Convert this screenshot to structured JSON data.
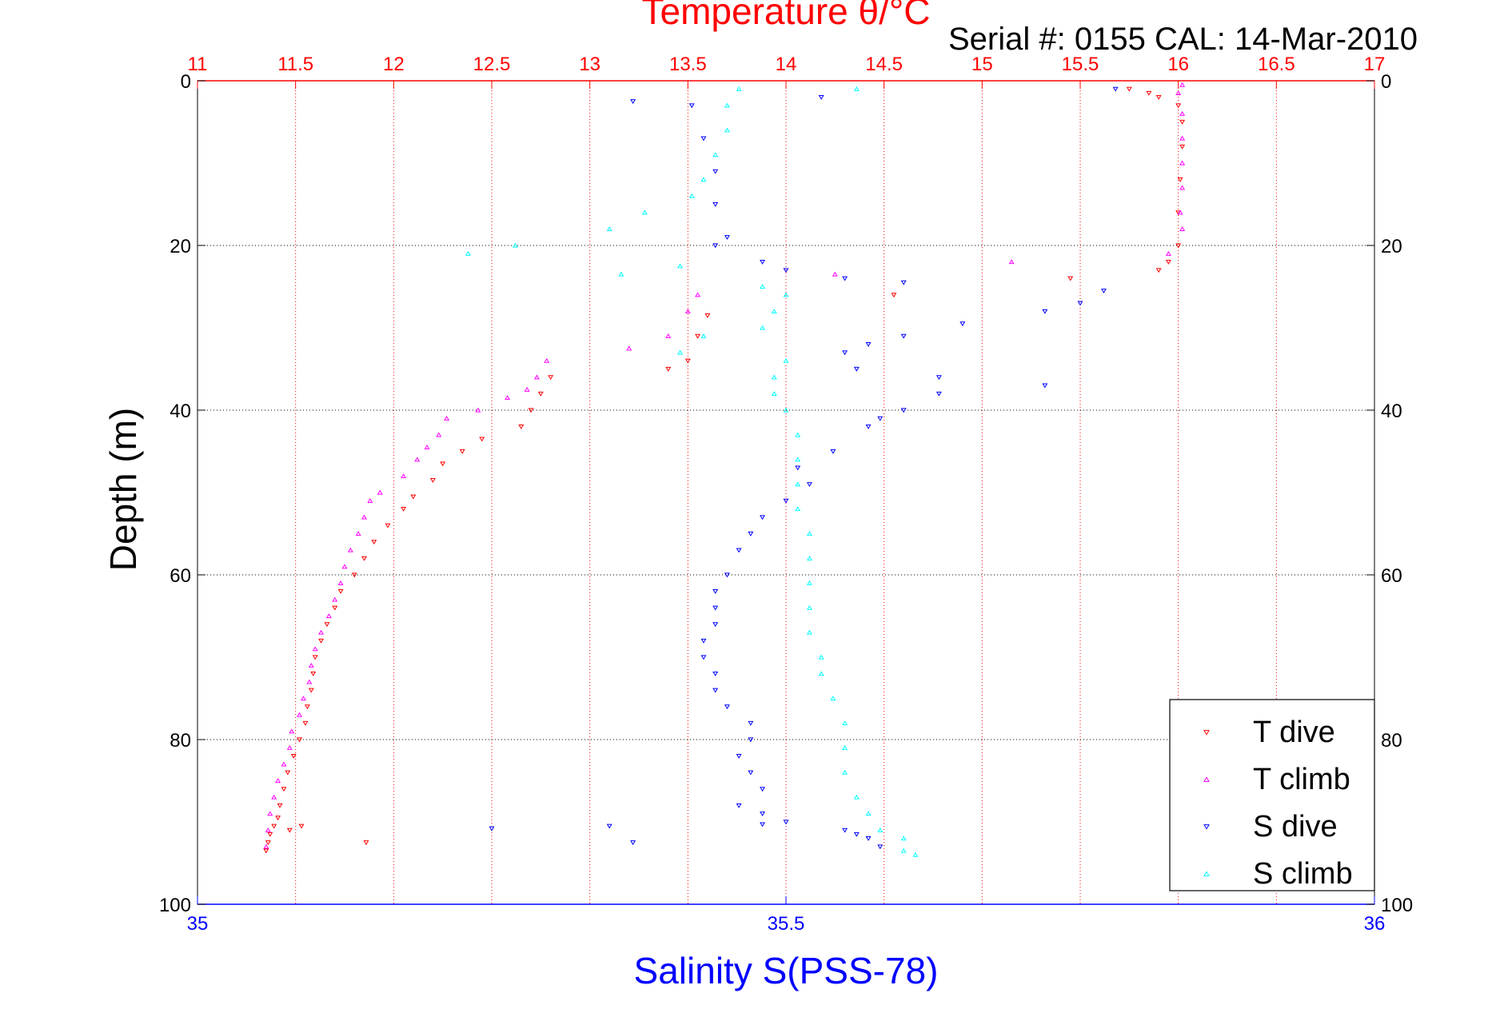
{
  "chart_data": {
    "type": "scatter",
    "title": "Temperature θ/°C",
    "subtitle": "Serial #: 0155  CAL: 14-Mar-2010",
    "xlabel": "Salinity S(PSS-78)",
    "ylabel": "Depth (m)",
    "temperature_axis": {
      "lim": [
        11,
        17
      ],
      "ticks": [
        "11",
        "11.5",
        "12",
        "12.5",
        "13",
        "13.5",
        "14",
        "14.5",
        "15",
        "15.5",
        "16",
        "16.5",
        "17"
      ]
    },
    "salinity_axis": {
      "lim": [
        35,
        36
      ],
      "ticks": [
        "35",
        "35.5",
        "36"
      ]
    },
    "depth_axis": {
      "lim": [
        0,
        100
      ],
      "reversed": true,
      "ticks": [
        "0",
        "20",
        "40",
        "60",
        "80",
        "100"
      ]
    },
    "grid": true,
    "legend_position": "bottom-right",
    "colors": {
      "temperature_axis": "#ff0000",
      "salinity_axis": "#0000ff",
      "depth_axis": "#000000"
    },
    "series": [
      {
        "name": "T dive",
        "color": "#ff0000",
        "marker": "triangle-down",
        "axis": "temperature",
        "points": [
          [
            15.75,
            1
          ],
          [
            15.85,
            1.5
          ],
          [
            15.9,
            2
          ],
          [
            16.0,
            3
          ],
          [
            16.02,
            5
          ],
          [
            16.02,
            8
          ],
          [
            16.01,
            12
          ],
          [
            16.0,
            16
          ],
          [
            16.0,
            20
          ],
          [
            15.95,
            22
          ],
          [
            15.9,
            23
          ],
          [
            15.45,
            24
          ],
          [
            14.55,
            26
          ],
          [
            13.6,
            28.5
          ],
          [
            13.55,
            31
          ],
          [
            13.5,
            34
          ],
          [
            13.4,
            35
          ],
          [
            12.8,
            36
          ],
          [
            12.75,
            38
          ],
          [
            12.7,
            40
          ],
          [
            12.65,
            42
          ],
          [
            12.45,
            43.5
          ],
          [
            12.35,
            45
          ],
          [
            12.25,
            46.5
          ],
          [
            12.2,
            48.5
          ],
          [
            12.1,
            50.5
          ],
          [
            12.05,
            52
          ],
          [
            11.97,
            54
          ],
          [
            11.9,
            56
          ],
          [
            11.85,
            58
          ],
          [
            11.8,
            60
          ],
          [
            11.73,
            62
          ],
          [
            11.7,
            64
          ],
          [
            11.66,
            66
          ],
          [
            11.63,
            68
          ],
          [
            11.6,
            70
          ],
          [
            11.59,
            72
          ],
          [
            11.58,
            74
          ],
          [
            11.56,
            76
          ],
          [
            11.55,
            78
          ],
          [
            11.52,
            80
          ],
          [
            11.49,
            82
          ],
          [
            11.46,
            84
          ],
          [
            11.44,
            86
          ],
          [
            11.42,
            88
          ],
          [
            11.41,
            89.5
          ],
          [
            11.39,
            90.5
          ],
          [
            11.37,
            91.5
          ],
          [
            11.36,
            92.5
          ],
          [
            11.35,
            93.5
          ],
          [
            11.53,
            90.5
          ],
          [
            11.47,
            91
          ],
          [
            11.86,
            92.5
          ]
        ]
      },
      {
        "name": "T climb",
        "color": "#ff00ff",
        "marker": "triangle-up",
        "axis": "temperature",
        "points": [
          [
            16.02,
            0.5
          ],
          [
            16.0,
            1.5
          ],
          [
            16.02,
            4
          ],
          [
            16.02,
            7
          ],
          [
            16.02,
            10
          ],
          [
            16.02,
            13
          ],
          [
            16.01,
            16
          ],
          [
            16.02,
            18
          ],
          [
            15.95,
            21
          ],
          [
            15.15,
            22
          ],
          [
            14.25,
            23.5
          ],
          [
            13.55,
            26
          ],
          [
            13.5,
            28
          ],
          [
            13.4,
            31
          ],
          [
            13.2,
            32.5
          ],
          [
            12.78,
            34
          ],
          [
            12.73,
            36
          ],
          [
            12.68,
            37.5
          ],
          [
            12.58,
            38.5
          ],
          [
            12.43,
            40
          ],
          [
            12.27,
            41
          ],
          [
            12.23,
            43
          ],
          [
            12.17,
            44.5
          ],
          [
            12.12,
            46
          ],
          [
            12.05,
            48
          ],
          [
            11.93,
            50
          ],
          [
            11.88,
            51
          ],
          [
            11.85,
            53
          ],
          [
            11.82,
            55
          ],
          [
            11.78,
            57
          ],
          [
            11.75,
            59
          ],
          [
            11.73,
            61
          ],
          [
            11.7,
            63
          ],
          [
            11.67,
            65
          ],
          [
            11.63,
            67
          ],
          [
            11.6,
            69
          ],
          [
            11.58,
            71
          ],
          [
            11.57,
            73
          ],
          [
            11.54,
            75
          ],
          [
            11.52,
            77
          ],
          [
            11.48,
            79
          ],
          [
            11.47,
            81
          ],
          [
            11.44,
            83
          ],
          [
            11.41,
            85
          ],
          [
            11.39,
            87
          ],
          [
            11.37,
            89
          ],
          [
            11.36,
            91
          ],
          [
            11.35,
            93
          ]
        ]
      },
      {
        "name": "S dive",
        "color": "#0000ff",
        "marker": "triangle-down",
        "axis": "salinity",
        "points": [
          [
            35.78,
            1
          ],
          [
            35.53,
            2
          ],
          [
            35.37,
            2.5
          ],
          [
            35.42,
            3
          ],
          [
            35.43,
            7
          ],
          [
            35.44,
            11
          ],
          [
            35.44,
            15
          ],
          [
            35.45,
            19
          ],
          [
            35.44,
            20
          ],
          [
            35.48,
            22
          ],
          [
            35.5,
            23
          ],
          [
            35.55,
            24
          ],
          [
            35.6,
            24.5
          ],
          [
            35.77,
            25.5
          ],
          [
            35.75,
            27
          ],
          [
            35.72,
            28
          ],
          [
            35.65,
            29.5
          ],
          [
            35.6,
            31
          ],
          [
            35.57,
            32
          ],
          [
            35.55,
            33
          ],
          [
            35.56,
            35
          ],
          [
            35.63,
            36
          ],
          [
            35.63,
            38
          ],
          [
            35.72,
            37
          ],
          [
            35.6,
            40
          ],
          [
            35.58,
            41
          ],
          [
            35.57,
            42
          ],
          [
            35.54,
            45
          ],
          [
            35.51,
            47
          ],
          [
            35.52,
            49
          ],
          [
            35.5,
            51
          ],
          [
            35.48,
            53
          ],
          [
            35.47,
            55
          ],
          [
            35.46,
            57
          ],
          [
            35.45,
            60
          ],
          [
            35.44,
            62
          ],
          [
            35.44,
            64
          ],
          [
            35.44,
            66
          ],
          [
            35.43,
            68
          ],
          [
            35.43,
            70
          ],
          [
            35.44,
            72
          ],
          [
            35.44,
            74
          ],
          [
            35.45,
            76
          ],
          [
            35.47,
            78
          ],
          [
            35.47,
            80
          ],
          [
            35.46,
            82
          ],
          [
            35.47,
            84
          ],
          [
            35.48,
            86
          ],
          [
            35.46,
            88
          ],
          [
            35.48,
            89
          ],
          [
            35.5,
            90
          ],
          [
            35.55,
            91
          ],
          [
            35.56,
            91.5
          ],
          [
            35.57,
            92
          ],
          [
            35.58,
            93
          ],
          [
            35.35,
            90.5
          ],
          [
            35.25,
            90.8
          ],
          [
            35.48,
            90.3
          ],
          [
            35.37,
            92.5
          ]
        ]
      },
      {
        "name": "S climb",
        "color": "#00ffff",
        "marker": "triangle-up",
        "axis": "salinity",
        "points": [
          [
            35.56,
            1
          ],
          [
            35.46,
            1
          ],
          [
            35.45,
            3
          ],
          [
            35.45,
            6
          ],
          [
            35.44,
            9
          ],
          [
            35.43,
            12
          ],
          [
            35.42,
            14
          ],
          [
            35.38,
            16
          ],
          [
            35.35,
            18
          ],
          [
            35.27,
            20
          ],
          [
            35.23,
            21
          ],
          [
            35.36,
            23.5
          ],
          [
            35.41,
            22.5
          ],
          [
            35.48,
            25
          ],
          [
            35.5,
            26
          ],
          [
            35.49,
            28
          ],
          [
            35.48,
            30
          ],
          [
            35.43,
            31
          ],
          [
            35.41,
            33
          ],
          [
            35.5,
            34
          ],
          [
            35.49,
            36
          ],
          [
            35.49,
            38
          ],
          [
            35.5,
            40
          ],
          [
            35.51,
            43
          ],
          [
            35.51,
            46
          ],
          [
            35.51,
            49
          ],
          [
            35.51,
            52
          ],
          [
            35.52,
            55
          ],
          [
            35.52,
            58
          ],
          [
            35.52,
            61
          ],
          [
            35.52,
            64
          ],
          [
            35.52,
            67
          ],
          [
            35.53,
            70
          ],
          [
            35.53,
            72
          ],
          [
            35.54,
            75
          ],
          [
            35.55,
            78
          ],
          [
            35.55,
            81
          ],
          [
            35.55,
            84
          ],
          [
            35.56,
            87
          ],
          [
            35.57,
            89
          ],
          [
            35.58,
            91
          ],
          [
            35.6,
            92
          ],
          [
            35.6,
            93.5
          ],
          [
            35.61,
            94
          ]
        ]
      }
    ]
  }
}
